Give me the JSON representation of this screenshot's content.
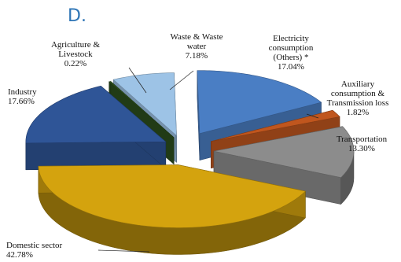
{
  "panel_label": "D.",
  "chart_data": {
    "type": "pie",
    "title": "",
    "slices": [
      {
        "label": [
          "Electricity",
          "consumption",
          "(Others) *"
        ],
        "value_text": "17.04%",
        "value": 17.04,
        "color": "#4a7ec4",
        "exploded": true
      },
      {
        "label": [
          "Auxiliary",
          "consumption &",
          "Transmission loss"
        ],
        "value_text": "1.82%",
        "value": 1.82,
        "color": "#c0561e",
        "exploded": true
      },
      {
        "label": [
          "Transportation"
        ],
        "value_text": "13.30%",
        "value": 13.3,
        "color": "#8c8c8c",
        "exploded": true
      },
      {
        "label": [
          "Domestic sector"
        ],
        "value_text": "42.78%",
        "value": 42.78,
        "color": "#d4a30e",
        "exploded": false
      },
      {
        "label": [
          "Industry"
        ],
        "value_text": "17.66%",
        "value": 17.66,
        "color": "#2f5597",
        "exploded": false
      },
      {
        "label": [
          "Agriculture &",
          "Livestock"
        ],
        "value_text": "0.22%",
        "value": 0.22,
        "color": "#2c4e1d",
        "exploded": false
      },
      {
        "label": [
          "Waste & Waste",
          "water"
        ],
        "value_text": "7.18%",
        "value": 7.18,
        "color": "#9dc3e6",
        "exploded": false
      }
    ],
    "style": "3d-exploded-pie"
  }
}
